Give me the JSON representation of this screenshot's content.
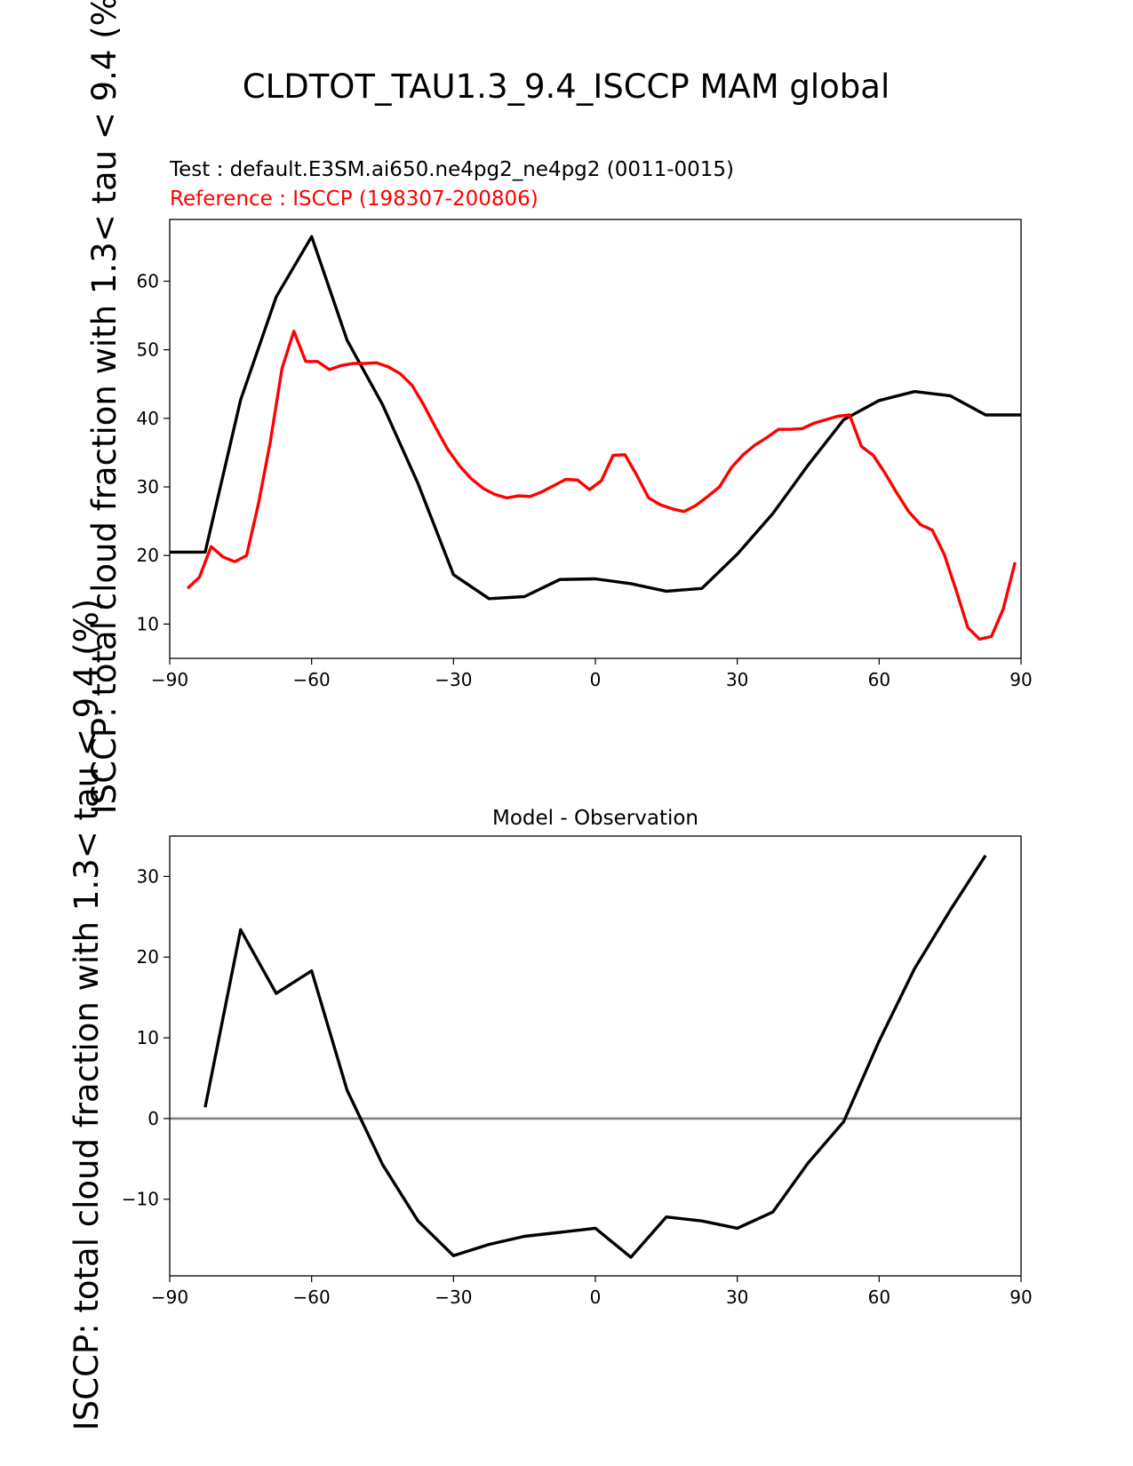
{
  "page": {
    "suptitle": "CLDTOT_TAU1.3_9.4_ISCCP MAM global"
  },
  "colors": {
    "test": "#000000",
    "reference": "#ff0000",
    "zero_line": "#808080"
  },
  "chart_data": [
    {
      "type": "line",
      "test_label": "Test : default.E3SM.ai650.ne4pg2_ne4pg2 (0011-0015)",
      "reference_label": "Reference : ISCCP (198307-200806)",
      "ylabel": "ISCCP: total cloud fraction with 1.3< tau < 9.4 (%)",
      "xlim": [
        -90,
        90
      ],
      "ylim": [
        5,
        69
      ],
      "xticks": [
        -90,
        -60,
        -30,
        0,
        30,
        60,
        90
      ],
      "xtick_labels": [
        "−90",
        "−60",
        "−30",
        "0",
        "30",
        "60",
        "90"
      ],
      "yticks": [
        10,
        20,
        30,
        40,
        50,
        60
      ],
      "ytick_labels": [
        "10",
        "20",
        "30",
        "40",
        "50",
        "60"
      ],
      "series": [
        {
          "name": "Test",
          "color": "#000000",
          "x": [
            -90,
            -82.5,
            -75,
            -67.5,
            -60,
            -52.5,
            -45,
            -37.5,
            -30,
            -22.5,
            -15,
            -7.5,
            0,
            7.5,
            15,
            22.5,
            30,
            37.5,
            45,
            52.5,
            60,
            67.5,
            75,
            82.5,
            90
          ],
          "y": [
            20.5,
            20.5,
            42.7,
            57.7,
            66.5,
            51.4,
            42.0,
            30.5,
            17.2,
            13.7,
            14.0,
            16.5,
            16.6,
            15.9,
            14.8,
            15.2,
            20.2,
            26.1,
            33.2,
            39.8,
            42.6,
            43.9,
            43.3,
            40.5,
            40.5
          ]
        },
        {
          "name": "Reference",
          "color": "#ff0000",
          "x": [
            -86.25,
            -83.75,
            -81.25,
            -78.75,
            -76.25,
            -73.75,
            -71.25,
            -68.75,
            -66.25,
            -63.75,
            -61.25,
            -58.75,
            -56.25,
            -53.75,
            -51.25,
            -48.75,
            -46.25,
            -43.75,
            -41.25,
            -38.75,
            -36.25,
            -33.75,
            -31.25,
            -28.75,
            -26.25,
            -23.75,
            -21.25,
            -18.75,
            -16.25,
            -13.75,
            -11.25,
            -8.75,
            -6.25,
            -3.75,
            -1.25,
            1.25,
            3.75,
            6.25,
            8.75,
            11.25,
            13.75,
            16.25,
            18.75,
            21.25,
            23.75,
            26.25,
            28.75,
            31.25,
            33.75,
            36.25,
            38.75,
            41.25,
            43.75,
            46.25,
            48.75,
            51.25,
            53.75,
            56.25,
            58.75,
            61.25,
            63.75,
            66.25,
            68.75,
            71.25,
            73.75,
            76.25,
            78.75,
            81.25,
            83.75,
            86.25,
            88.75
          ],
          "y": [
            15.2,
            16.8,
            21.3,
            19.8,
            19.1,
            20.0,
            27.5,
            36.5,
            47.3,
            52.7,
            48.3,
            48.3,
            47.1,
            47.7,
            48.0,
            48.0,
            48.1,
            47.5,
            46.5,
            44.8,
            41.9,
            38.6,
            35.5,
            33.1,
            31.2,
            29.8,
            28.9,
            28.4,
            28.7,
            28.6,
            29.3,
            30.2,
            31.1,
            31.0,
            29.6,
            30.9,
            34.6,
            34.7,
            31.7,
            28.4,
            27.4,
            26.8,
            26.4,
            27.3,
            28.6,
            30.0,
            32.8,
            34.7,
            36.1,
            37.2,
            38.4,
            38.4,
            38.5,
            39.3,
            39.8,
            40.3,
            40.5,
            35.9,
            34.6,
            32.0,
            29.1,
            26.4,
            24.5,
            23.7,
            20.2,
            15.0,
            9.5,
            7.8,
            8.2,
            12.2,
            19.0
          ]
        }
      ]
    },
    {
      "type": "line",
      "title": "Model - Observation",
      "ylabel": "ISCCP: total cloud fraction with 1.3< tau < 9.4 (%)",
      "xlim": [
        -90,
        90
      ],
      "ylim": [
        -19.5,
        35
      ],
      "xticks": [
        -90,
        -60,
        -30,
        0,
        30,
        60,
        90
      ],
      "xtick_labels": [
        "−90",
        "−60",
        "−30",
        "0",
        "30",
        "60",
        "90"
      ],
      "yticks": [
        -10,
        0,
        10,
        20,
        30
      ],
      "ytick_labels": [
        "−10",
        "0",
        "10",
        "20",
        "30"
      ],
      "hline": 0,
      "series": [
        {
          "name": "Difference",
          "color": "#000000",
          "x": [
            -82.5,
            -75,
            -67.5,
            -60,
            -52.5,
            -45,
            -37.5,
            -30,
            -22.5,
            -15,
            -7.5,
            0,
            7.5,
            15,
            22.5,
            30,
            37.5,
            45,
            52.5,
            60,
            67.5,
            75,
            82.5
          ],
          "y": [
            1.4,
            23.4,
            15.5,
            18.3,
            3.5,
            -5.7,
            -12.7,
            -17.0,
            -15.6,
            -14.6,
            -14.1,
            -13.6,
            -17.2,
            -12.2,
            -12.7,
            -13.6,
            -11.6,
            -5.5,
            -0.4,
            9.6,
            18.6,
            25.8,
            32.6
          ]
        }
      ]
    }
  ]
}
